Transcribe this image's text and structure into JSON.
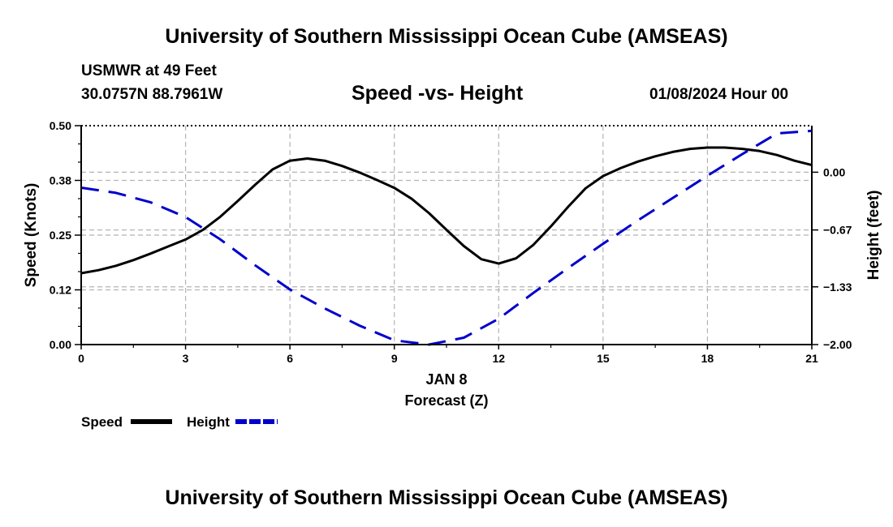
{
  "header": {
    "title": "University of Southern Mississippi Ocean Cube (AMSEAS)",
    "station_line": "USMWR at 49 Feet",
    "coords": "30.0757N  88.7961W",
    "date_hour": "01/08/2024 Hour 00"
  },
  "footer": {
    "title": "University of Southern Mississippi Ocean Cube (AMSEAS)"
  },
  "colors": {
    "speed": "#000000",
    "height": "#0000cc",
    "grid": "#b4b4b4"
  },
  "chart_data": {
    "type": "line",
    "title": "Speed -vs- Height",
    "xlabel_top": "JAN 8",
    "xlabel": "Forecast (Z)",
    "ylabel": "Speed (Knots)",
    "ylabel2": "Height (feet)",
    "xlim": [
      0,
      21
    ],
    "ylim": [
      0,
      0.5
    ],
    "ylim2": [
      -2.0,
      0.54
    ],
    "xticks": [
      0,
      3,
      6,
      9,
      12,
      15,
      18,
      21
    ],
    "xtick_labels": [
      "0",
      "3",
      "6",
      "9",
      "12",
      "15",
      "18",
      "21"
    ],
    "yticks": [
      0,
      0.125,
      0.25,
      0.375,
      0.5
    ],
    "ytick_labels": [
      "0.00",
      "0.12",
      "0.25",
      "0.38",
      "0.50"
    ],
    "yticks2": [
      -2.0,
      -1.33,
      -0.67,
      0.0
    ],
    "ytick_labels2": [
      "−2.00",
      "−1.33",
      "−0.67",
      "0.00"
    ],
    "series": [
      {
        "name": "Speed",
        "axis": "left",
        "style": "solid",
        "x": [
          0,
          0.5,
          1,
          1.5,
          2,
          2.5,
          3,
          3.5,
          4,
          4.5,
          5,
          5.5,
          6,
          6.5,
          7,
          7.5,
          8,
          8.5,
          9,
          9.5,
          10,
          10.5,
          11,
          11.5,
          12,
          12.5,
          13,
          13.5,
          14,
          14.5,
          15,
          15.5,
          16,
          16.5,
          17,
          17.5,
          18,
          18.5,
          19,
          19.5,
          20,
          20.5,
          21
        ],
        "values": [
          0.163,
          0.17,
          0.18,
          0.193,
          0.208,
          0.224,
          0.24,
          0.262,
          0.292,
          0.328,
          0.365,
          0.4,
          0.42,
          0.425,
          0.42,
          0.408,
          0.393,
          0.376,
          0.358,
          0.333,
          0.3,
          0.262,
          0.225,
          0.195,
          0.185,
          0.197,
          0.228,
          0.27,
          0.315,
          0.357,
          0.385,
          0.403,
          0.418,
          0.43,
          0.44,
          0.447,
          0.45,
          0.45,
          0.447,
          0.442,
          0.433,
          0.42,
          0.41
        ]
      },
      {
        "name": "Height",
        "axis": "right",
        "style": "dashed",
        "x": [
          0,
          1,
          2,
          3,
          4,
          5,
          6,
          7,
          8,
          9,
          10,
          11,
          12,
          13,
          14,
          15,
          16,
          17,
          18,
          19,
          20,
          21
        ],
        "values": [
          -0.18,
          -0.24,
          -0.35,
          -0.52,
          -0.78,
          -1.08,
          -1.36,
          -1.58,
          -1.78,
          -1.95,
          -2.0,
          -1.92,
          -1.7,
          -1.4,
          -1.11,
          -0.83,
          -0.56,
          -0.3,
          -0.04,
          0.21,
          0.45,
          0.48
        ]
      }
    ],
    "legend": [
      {
        "label": "Speed",
        "style": "solid"
      },
      {
        "label": "Height",
        "style": "dashed"
      }
    ]
  }
}
